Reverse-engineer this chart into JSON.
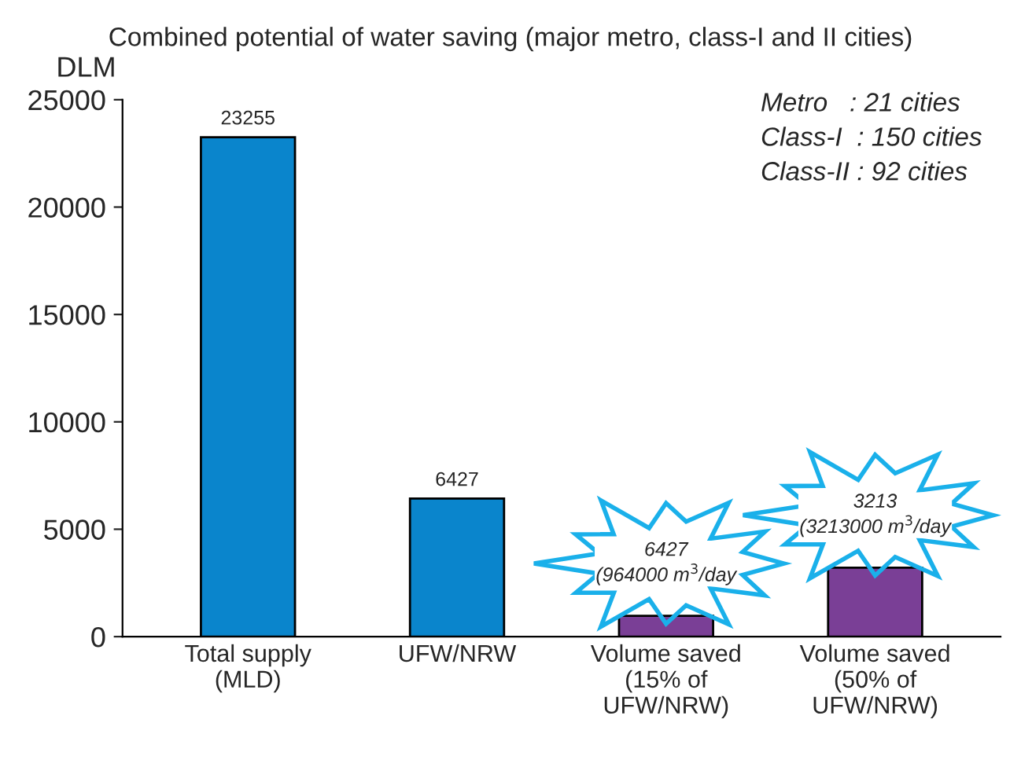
{
  "chart_data": {
    "type": "bar",
    "title": "Combined potential of water saving (major metro, class-I and II cities)",
    "ylabel": "DLM",
    "categories": [
      "Total supply\n(MLD)",
      "UFW/NRW",
      "Volume saved\n(15% of\nUFW/NRW)",
      "Volume saved\n(50% of\nUFW/NRW)"
    ],
    "values": [
      23255,
      6427,
      964,
      3213
    ],
    "colors": [
      "#0a85cc",
      "#0a85cc",
      "#7a3f96",
      "#7a3f96"
    ],
    "value_labels": [
      "23255",
      "6427",
      null,
      null
    ],
    "ylim": [
      0,
      25000
    ],
    "yticks": [
      0,
      5000,
      10000,
      15000,
      20000,
      25000
    ],
    "annotations": [
      {
        "text": "6427\n(964000 m$^{3}$/day",
        "x": "Volume saved\n(15% of\nUFW/NRW)",
        "y": 964
      },
      {
        "text": "3213\n(3213000 m$^{3}$/day",
        "x": "Volume saved\n(50% of\nUFW/NRW)",
        "y": 3213
      },
      "Metro   : 21 cities",
      "Class-I  : 150 cities",
      "Class-II : 92 cities"
    ],
    "grid": false,
    "legend": false
  }
}
